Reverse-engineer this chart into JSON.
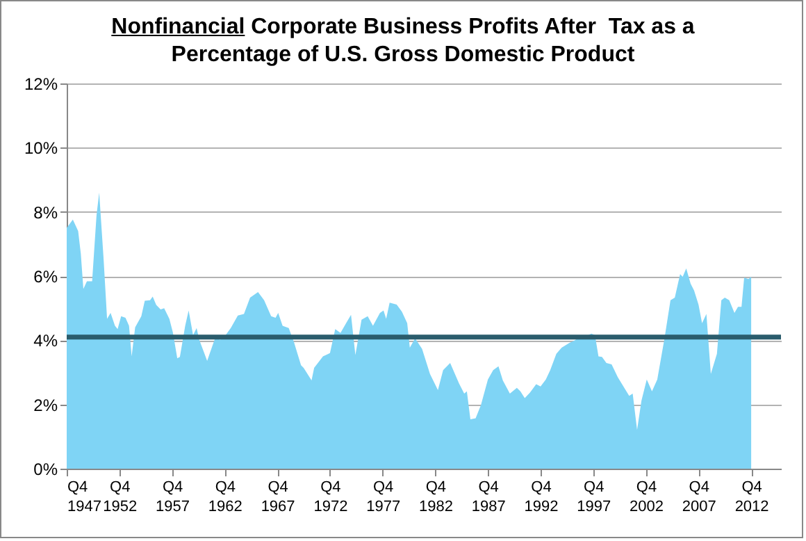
{
  "chart_data": {
    "type": "area",
    "title": "Nonfinancial Corporate Business Profits After  Tax as a Percentage of U.S. Gross Domestic Product",
    "x": [
      "1947-10",
      "1948-05",
      "1948-11",
      "1949-02",
      "1949-05",
      "1949-09",
      "1950-03",
      "1950-08",
      "1950-11",
      "1951-04",
      "1951-08",
      "1951-12",
      "1952-05",
      "1952-08",
      "1952-12",
      "1953-05",
      "1953-09",
      "1953-12",
      "1954-04",
      "1954-11",
      "1955-03",
      "1955-09",
      "1955-12",
      "1956-04",
      "1956-09",
      "1957-01",
      "1957-07",
      "1957-11",
      "1958-04",
      "1958-07",
      "1959-01",
      "1959-05",
      "1959-10",
      "1960-02",
      "1960-05",
      "1961-02",
      "1961-11",
      "1962-05",
      "1962-11",
      "1963-05",
      "1964-01",
      "1964-08",
      "1965-03",
      "1965-12",
      "1966-07",
      "1967-03",
      "1967-08",
      "1967-11",
      "1968-04",
      "1968-11",
      "1969-05",
      "1970-01",
      "1970-04",
      "1971-01",
      "1971-04",
      "1972-02",
      "1972-10",
      "1973-04",
      "1973-10",
      "1974-05",
      "1974-10",
      "1975-03",
      "1975-10",
      "1976-05",
      "1976-11",
      "1977-07",
      "1977-11",
      "1978-02",
      "1978-06",
      "1979-02",
      "1979-08",
      "1980-02",
      "1980-05",
      "1980-11",
      "1981-07",
      "1982-04",
      "1983-01",
      "1983-07",
      "1984-03",
      "1985-01",
      "1985-07",
      "1985-10",
      "1986-02",
      "1986-08",
      "1987-02",
      "1987-10",
      "1988-04",
      "1988-10",
      "1989-03",
      "1989-11",
      "1990-07",
      "1990-11",
      "1991-04",
      "1991-10",
      "1992-05",
      "1992-10",
      "1993-04",
      "1993-09",
      "1994-04",
      "1994-10",
      "1995-07",
      "1995-11",
      "1996-05",
      "1997-01",
      "1997-08",
      "1997-12",
      "1998-04",
      "1998-08",
      "1999-01",
      "1999-07",
      "2000-02",
      "2000-10",
      "2001-03",
      "2001-07",
      "2001-12",
      "2002-05",
      "2002-11",
      "2003-05",
      "2003-11",
      "2004-07",
      "2005-02",
      "2005-07",
      "2006-01",
      "2006-04",
      "2006-08",
      "2007-01",
      "2007-05",
      "2007-10",
      "2008-02",
      "2008-07",
      "2008-12",
      "2009-07",
      "2009-12",
      "2010-04",
      "2010-09",
      "2011-03",
      "2011-07",
      "2011-11",
      "2012-02",
      "2012-07",
      "2012-10"
    ],
    "series": [
      {
        "color": "#7fd4f5",
        "values": [
          7.5,
          7.76,
          7.4,
          6.7,
          5.6,
          5.84,
          5.84,
          7.9,
          8.6,
          6.56,
          4.67,
          4.85,
          4.45,
          4.35,
          4.75,
          4.7,
          4.45,
          3.5,
          4.4,
          4.75,
          5.23,
          5.25,
          5.36,
          5.1,
          4.96,
          5.0,
          4.67,
          4.24,
          3.44,
          3.48,
          4.45,
          4.93,
          4.16,
          4.38,
          4.02,
          3.36,
          4.06,
          4.02,
          4.16,
          4.38,
          4.77,
          4.82,
          5.33,
          5.5,
          5.25,
          4.75,
          4.7,
          4.85,
          4.45,
          4.38,
          3.94,
          3.22,
          3.14,
          2.75,
          3.14,
          3.5,
          3.6,
          4.35,
          4.23,
          4.56,
          4.79,
          3.54,
          4.64,
          4.75,
          4.45,
          4.85,
          4.93,
          4.67,
          5.17,
          5.11,
          4.89,
          4.53,
          3.77,
          4.06,
          3.73,
          2.95,
          2.45,
          3.07,
          3.29,
          2.66,
          2.34,
          2.41,
          1.54,
          1.57,
          1.98,
          2.78,
          3.07,
          3.19,
          2.75,
          2.34,
          2.52,
          2.41,
          2.2,
          2.37,
          2.63,
          2.56,
          2.78,
          3.07,
          3.58,
          3.77,
          3.92,
          3.97,
          4.06,
          4.12,
          4.21,
          4.16,
          3.5,
          3.48,
          3.29,
          3.25,
          2.85,
          2.49,
          2.27,
          2.34,
          1.21,
          2.12,
          2.78,
          2.41,
          2.78,
          4.02,
          5.25,
          5.33,
          6.06,
          5.98,
          6.24,
          5.76,
          5.55,
          5.11,
          4.53,
          4.82,
          2.95,
          3.58,
          5.25,
          5.33,
          5.25,
          4.85,
          5.04,
          5.04,
          5.95,
          5.91,
          5.98
        ]
      }
    ],
    "xlim": [
      "1947-10",
      "2015-08"
    ],
    "xticks": [
      {
        "value": "1947-10",
        "label": "Q4 1947"
      },
      {
        "value": "1952-10",
        "label": "Q4 1952"
      },
      {
        "value": "1957-10",
        "label": "Q4 1957"
      },
      {
        "value": "1962-10",
        "label": "Q4 1962"
      },
      {
        "value": "1967-10",
        "label": "Q4 1967"
      },
      {
        "value": "1972-10",
        "label": "Q4 1972"
      },
      {
        "value": "1977-10",
        "label": "Q4 1977"
      },
      {
        "value": "1982-10",
        "label": "Q4 1982"
      },
      {
        "value": "1987-10",
        "label": "Q4 1987"
      },
      {
        "value": "1992-10",
        "label": "Q4 1992"
      },
      {
        "value": "1997-10",
        "label": "Q4 1997"
      },
      {
        "value": "2002-10",
        "label": "Q4 2002"
      },
      {
        "value": "2007-10",
        "label": "Q4 2007"
      },
      {
        "value": "2012-10",
        "label": "Q4 2012"
      }
    ],
    "ylim": [
      0,
      12
    ],
    "yticks": [
      {
        "value": 0,
        "label": "0%"
      },
      {
        "value": 2,
        "label": "2%"
      },
      {
        "value": 4,
        "label": "4%"
      },
      {
        "value": 6,
        "label": "6%"
      },
      {
        "value": 8,
        "label": "8%"
      },
      {
        "value": 10,
        "label": "10%"
      },
      {
        "value": 12,
        "label": "12%"
      }
    ],
    "grid": "y",
    "ref_lines": [
      {
        "axis": "y",
        "value": 4.1,
        "color": "#2a5c6c"
      }
    ]
  }
}
